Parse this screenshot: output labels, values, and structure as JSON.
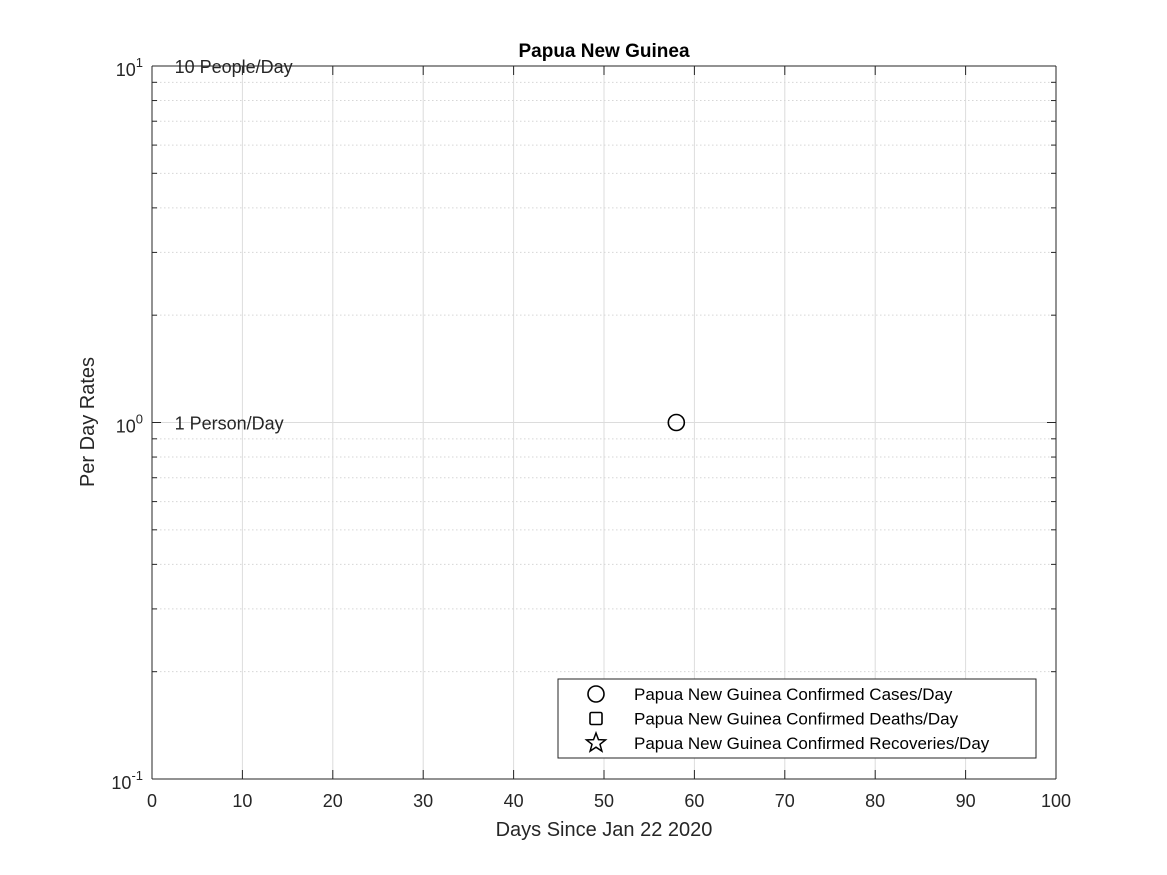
{
  "chart_data": {
    "type": "scatter",
    "title": "Papua New Guinea",
    "xlabel": "Days Since Jan 22 2020",
    "ylabel": "Per Day Rates",
    "xlim": [
      0,
      100
    ],
    "ylim": [
      0.1,
      10
    ],
    "yscale": "log",
    "grid": true,
    "x_ticks": [
      0,
      10,
      20,
      30,
      40,
      50,
      60,
      70,
      80,
      90,
      100
    ],
    "x_tick_labels": [
      "0",
      "10",
      "20",
      "30",
      "40",
      "50",
      "60",
      "70",
      "80",
      "90",
      "100"
    ],
    "y_ticks": [
      {
        "value": 0.1,
        "base": "10",
        "exp": "-1"
      },
      {
        "value": 1,
        "base": "10",
        "exp": "0"
      },
      {
        "value": 10,
        "base": "10",
        "exp": "1"
      }
    ],
    "annotations": [
      {
        "text": "10 People/Day",
        "x": 2.5,
        "y": 10
      },
      {
        "text": "1 Person/Day",
        "x": 2.5,
        "y": 1
      }
    ],
    "series": [
      {
        "name": "Papua New Guinea Confirmed Cases/Day",
        "marker": "circle",
        "points": [
          {
            "x": 58,
            "y": 1
          }
        ]
      },
      {
        "name": "Papua New Guinea Confirmed Deaths/Day",
        "marker": "square",
        "points": []
      },
      {
        "name": "Papua New Guinea Confirmed Recoveries/Day",
        "marker": "star",
        "points": []
      }
    ],
    "legend_position": "bottom-right",
    "colors": {
      "marker": "#000000",
      "grid": "#dcdcdc",
      "axis": "#262626"
    }
  }
}
